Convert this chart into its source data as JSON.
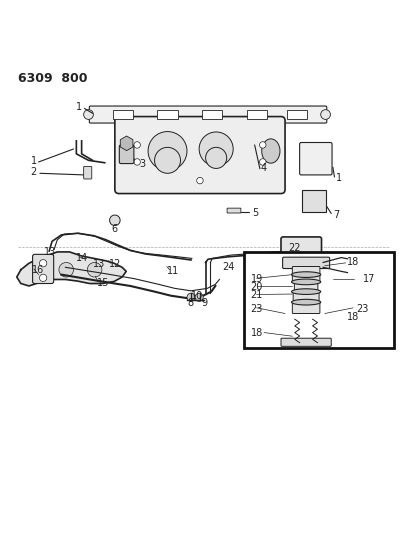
{
  "title_code": "6309 800",
  "bg_color": "#ffffff",
  "line_color": "#222222",
  "figsize": [
    4.08,
    5.33
  ],
  "dpi": 100
}
